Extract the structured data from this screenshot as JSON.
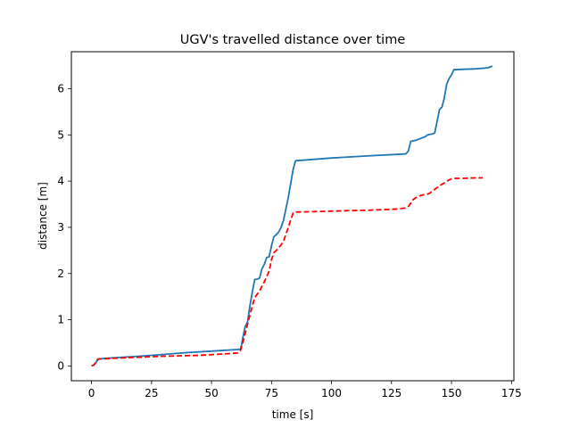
{
  "chart_data": {
    "type": "line",
    "title": "UGV's travelled distance over time",
    "xlabel": "time [s]",
    "ylabel": "distance [m]",
    "xlim": [
      -8.4,
      176
    ],
    "ylim": [
      -0.32,
      6.8
    ],
    "xticks": [
      0,
      25,
      50,
      75,
      100,
      125,
      150,
      175
    ],
    "yticks": [
      0,
      1,
      2,
      3,
      4,
      5,
      6
    ],
    "grid": false,
    "series": [
      {
        "color": "#1f77b4",
        "linestyle": "solid",
        "points": [
          [
            0,
            0
          ],
          [
            1,
            0.02
          ],
          [
            2,
            0.08
          ],
          [
            2.5,
            0.15
          ],
          [
            10,
            0.18
          ],
          [
            20,
            0.21
          ],
          [
            30,
            0.25
          ],
          [
            40,
            0.29
          ],
          [
            50,
            0.32
          ],
          [
            62,
            0.36
          ],
          [
            62.5,
            0.45
          ],
          [
            63,
            0.6
          ],
          [
            64,
            0.85
          ],
          [
            65,
            0.95
          ],
          [
            66,
            1.3
          ],
          [
            67,
            1.6
          ],
          [
            68,
            1.87
          ],
          [
            69,
            1.88
          ],
          [
            70,
            1.9
          ],
          [
            71,
            2.1
          ],
          [
            72,
            2.2
          ],
          [
            73,
            2.35
          ],
          [
            74,
            2.36
          ],
          [
            75,
            2.6
          ],
          [
            76,
            2.8
          ],
          [
            77,
            2.84
          ],
          [
            78,
            2.9
          ],
          [
            79,
            3.0
          ],
          [
            80,
            3.15
          ],
          [
            81,
            3.4
          ],
          [
            82,
            3.65
          ],
          [
            83,
            3.95
          ],
          [
            84,
            4.25
          ],
          [
            85,
            4.44
          ],
          [
            100,
            4.5
          ],
          [
            110,
            4.53
          ],
          [
            120,
            4.56
          ],
          [
            128,
            4.58
          ],
          [
            131,
            4.59
          ],
          [
            132,
            4.65
          ],
          [
            133,
            4.86
          ],
          [
            135,
            4.88
          ],
          [
            137,
            4.92
          ],
          [
            139,
            4.96
          ],
          [
            140,
            5.0
          ],
          [
            142,
            5.02
          ],
          [
            143,
            5.04
          ],
          [
            145,
            5.55
          ],
          [
            146,
            5.6
          ],
          [
            147,
            5.8
          ],
          [
            148,
            6.1
          ],
          [
            149,
            6.22
          ],
          [
            150,
            6.3
          ],
          [
            151,
            6.41
          ],
          [
            155,
            6.42
          ],
          [
            160,
            6.43
          ],
          [
            165,
            6.45
          ],
          [
            166,
            6.47
          ],
          [
            167,
            6.49
          ]
        ]
      },
      {
        "color": "#ff0000",
        "linestyle": "dashed",
        "points": [
          [
            0,
            0
          ],
          [
            1,
            0.02
          ],
          [
            2,
            0.1
          ],
          [
            3,
            0.15
          ],
          [
            15,
            0.18
          ],
          [
            30,
            0.21
          ],
          [
            45,
            0.23
          ],
          [
            55,
            0.26
          ],
          [
            61,
            0.28
          ],
          [
            62,
            0.33
          ],
          [
            63,
            0.5
          ],
          [
            64,
            0.7
          ],
          [
            65,
            0.9
          ],
          [
            66,
            1.1
          ],
          [
            67,
            1.3
          ],
          [
            68,
            1.48
          ],
          [
            70,
            1.62
          ],
          [
            72,
            1.82
          ],
          [
            74,
            2.05
          ],
          [
            75,
            2.3
          ],
          [
            76,
            2.45
          ],
          [
            77,
            2.5
          ],
          [
            79,
            2.62
          ],
          [
            80,
            2.7
          ],
          [
            82,
            3.0
          ],
          [
            84,
            3.31
          ],
          [
            85,
            3.33
          ],
          [
            100,
            3.35
          ],
          [
            115,
            3.37
          ],
          [
            125,
            3.39
          ],
          [
            128,
            3.4
          ],
          [
            131,
            3.42
          ],
          [
            132,
            3.45
          ],
          [
            133,
            3.52
          ],
          [
            134,
            3.6
          ],
          [
            136,
            3.67
          ],
          [
            138,
            3.7
          ],
          [
            140,
            3.72
          ],
          [
            141,
            3.74
          ],
          [
            143,
            3.82
          ],
          [
            145,
            3.9
          ],
          [
            147,
            3.96
          ],
          [
            148,
            4.0
          ],
          [
            150,
            4.05
          ],
          [
            152,
            4.06
          ],
          [
            155,
            4.06
          ],
          [
            160,
            4.07
          ],
          [
            163,
            4.07
          ]
        ]
      }
    ]
  }
}
